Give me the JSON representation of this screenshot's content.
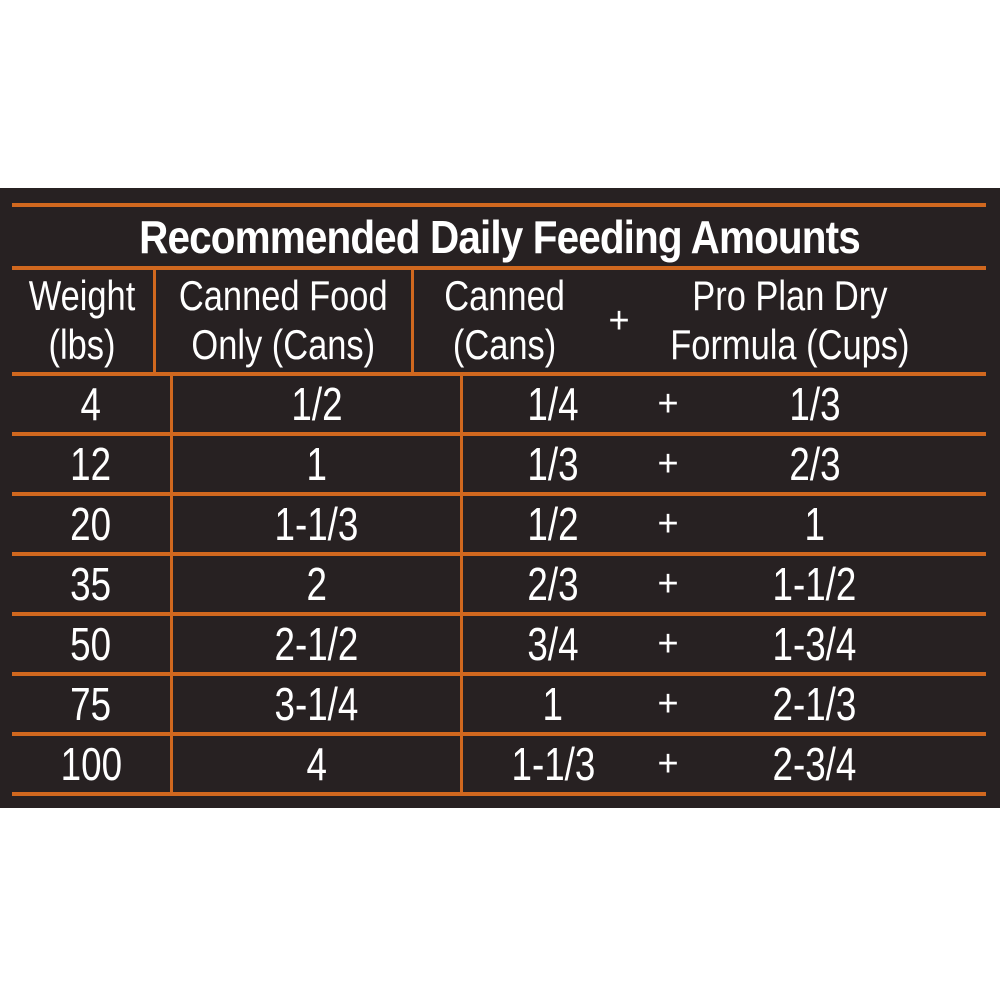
{
  "colors": {
    "background": "#ffffff",
    "panel": "#272122",
    "line": "#d0681f",
    "text": "#ffffff"
  },
  "table": {
    "title": "Recommended Daily Feeding Amounts",
    "columns": {
      "weight": {
        "line1": "Weight",
        "line2": "(lbs)"
      },
      "canned_only": {
        "line1": "Canned Food",
        "line2": "Only (Cans)"
      },
      "canned": {
        "line1": "Canned",
        "line2": "(Cans)"
      },
      "plus": "+",
      "dry": {
        "line1": "Pro Plan Dry",
        "line2": "Formula (Cups)"
      }
    },
    "rows": [
      {
        "weight": "4",
        "canned_only": "1/2",
        "canned": "1/4",
        "plus": "+",
        "dry": "1/3"
      },
      {
        "weight": "12",
        "canned_only": "1",
        "canned": "1/3",
        "plus": "+",
        "dry": "2/3"
      },
      {
        "weight": "20",
        "canned_only": "1-1/3",
        "canned": "1/2",
        "plus": "+",
        "dry": "1"
      },
      {
        "weight": "35",
        "canned_only": "2",
        "canned": "2/3",
        "plus": "+",
        "dry": "1-1/2"
      },
      {
        "weight": "50",
        "canned_only": "2-1/2",
        "canned": "3/4",
        "plus": "+",
        "dry": "1-3/4"
      },
      {
        "weight": "75",
        "canned_only": "3-1/4",
        "canned": "1",
        "plus": "+",
        "dry": "2-1/3"
      },
      {
        "weight": "100",
        "canned_only": "4",
        "canned": "1-1/3",
        "plus": "+",
        "dry": "2-3/4"
      }
    ]
  },
  "chart_data": {
    "type": "table",
    "title": "Recommended Daily Feeding Amounts",
    "columns": [
      "Weight (lbs)",
      "Canned Food Only (Cans)",
      "Canned (Cans)",
      "+",
      "Pro Plan Dry Formula (Cups)"
    ],
    "rows": [
      [
        "4",
        "1/2",
        "1/4",
        "+",
        "1/3"
      ],
      [
        "12",
        "1",
        "1/3",
        "+",
        "2/3"
      ],
      [
        "20",
        "1-1/3",
        "1/2",
        "+",
        "1"
      ],
      [
        "35",
        "2",
        "2/3",
        "+",
        "1-1/2"
      ],
      [
        "50",
        "2-1/2",
        "3/4",
        "+",
        "1-3/4"
      ],
      [
        "75",
        "3-1/4",
        "1",
        "+",
        "2-1/3"
      ],
      [
        "100",
        "4",
        "1-1/3",
        "+",
        "2-3/4"
      ]
    ],
    "layout": {
      "legend": "none",
      "grid": "orange rules on dark panel"
    }
  }
}
